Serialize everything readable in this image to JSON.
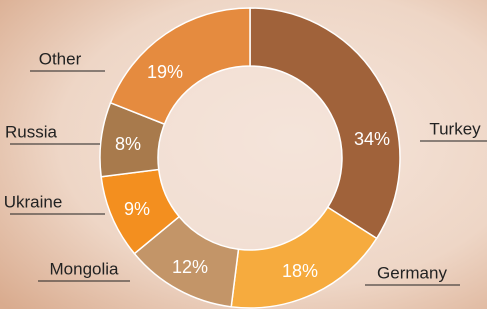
{
  "chart_data": {
    "type": "donut",
    "categories": [
      "Turkey",
      "Germany",
      "Mongolia",
      "Ukraine",
      "Russia",
      "Other"
    ],
    "values": [
      34,
      18,
      12,
      9,
      8,
      19
    ],
    "value_labels": [
      "34%",
      "18%",
      "12%",
      "9%",
      "8%",
      "19%"
    ],
    "colors": [
      "#a0623a",
      "#f6ab3e",
      "#c39568",
      "#f38f1f",
      "#a87a4c",
      "#e58b3f"
    ]
  }
}
